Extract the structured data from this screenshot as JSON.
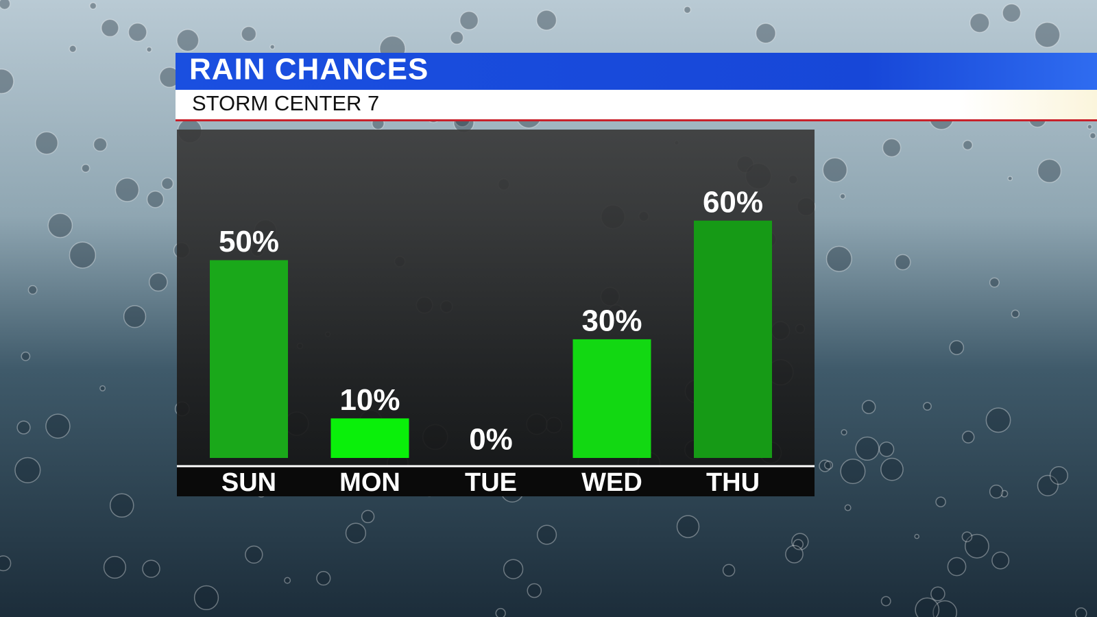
{
  "chart_data": {
    "type": "bar",
    "title": "RAIN CHANCES",
    "subtitle": "STORM CENTER 7",
    "categories": [
      "SUN",
      "MON",
      "TUE",
      "WED",
      "THU"
    ],
    "values": [
      50,
      10,
      0,
      30,
      60
    ],
    "value_labels": [
      "50%",
      "10%",
      "0%",
      "30%",
      "60%"
    ],
    "colors": [
      "#1aa81a",
      "#0af00a",
      "#10c810",
      "#12d812",
      "#169a16"
    ]
  }
}
